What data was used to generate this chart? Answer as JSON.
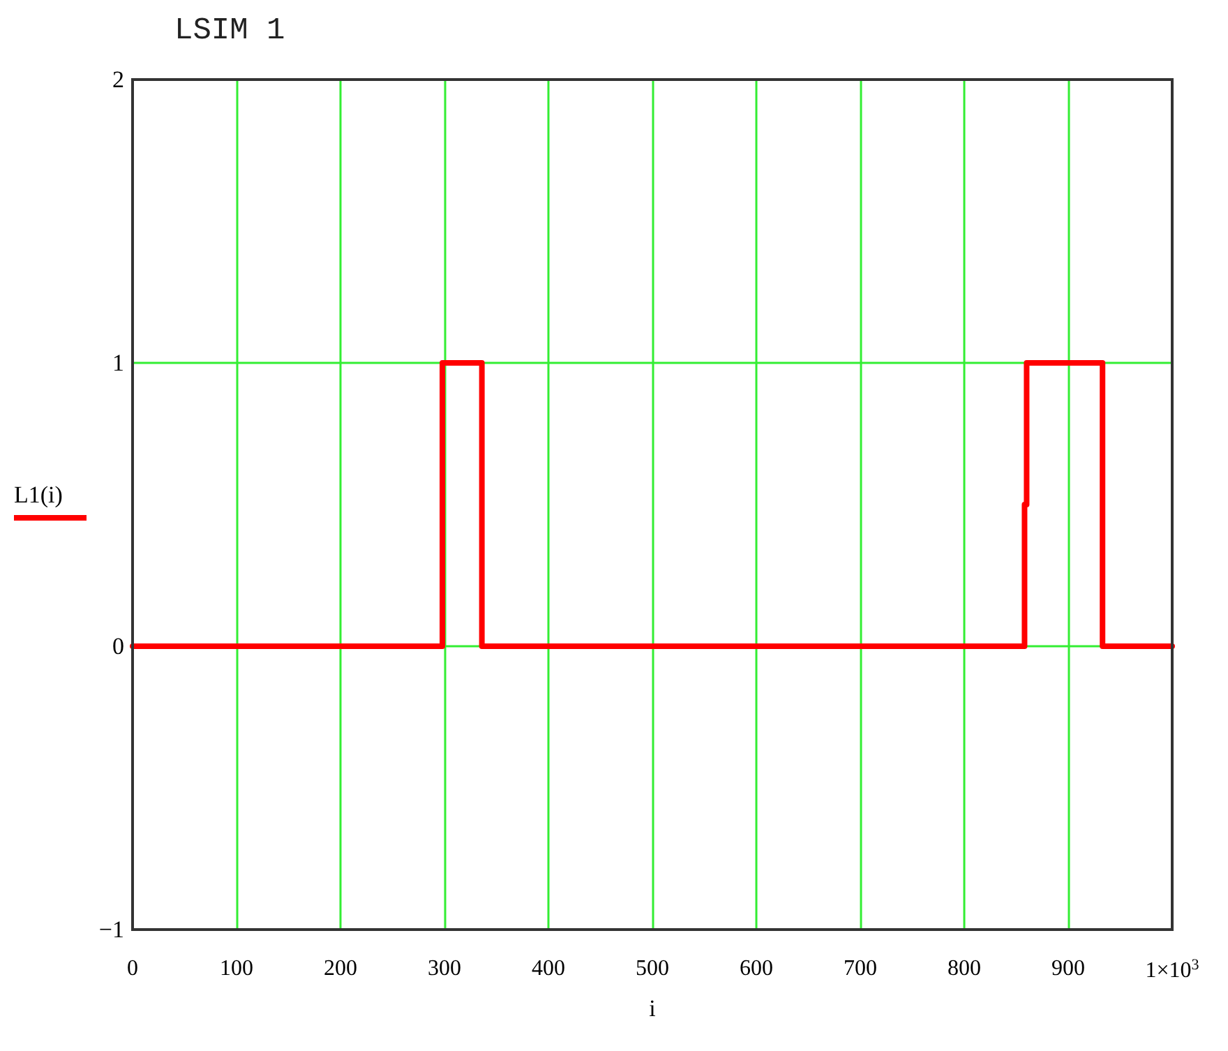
{
  "chart_data": {
    "type": "line",
    "title": "LSIM 1",
    "xlabel": "i",
    "ylabel": "L1(i)",
    "series": [
      {
        "color": "#ff0000",
        "x": [
          0,
          298,
          298,
          336,
          336,
          858,
          858,
          860,
          860,
          933,
          933,
          1000
        ],
        "values": [
          0,
          0,
          1,
          1,
          0,
          0,
          0.5,
          0.5,
          1,
          1,
          0,
          0
        ]
      }
    ],
    "xlim": [
      0,
      1000
    ],
    "xticks": [
      0,
      100,
      200,
      300,
      400,
      500,
      600,
      700,
      800,
      900,
      {
        "value": 1000,
        "label": "1×10$^{3}$"
      }
    ],
    "ylim": [
      -1,
      2
    ],
    "yticks": [
      {
        "value": -1,
        "label": "−1"
      },
      0,
      1,
      2
    ],
    "grid": true,
    "marker": "none",
    "line_style": "solid"
  }
}
